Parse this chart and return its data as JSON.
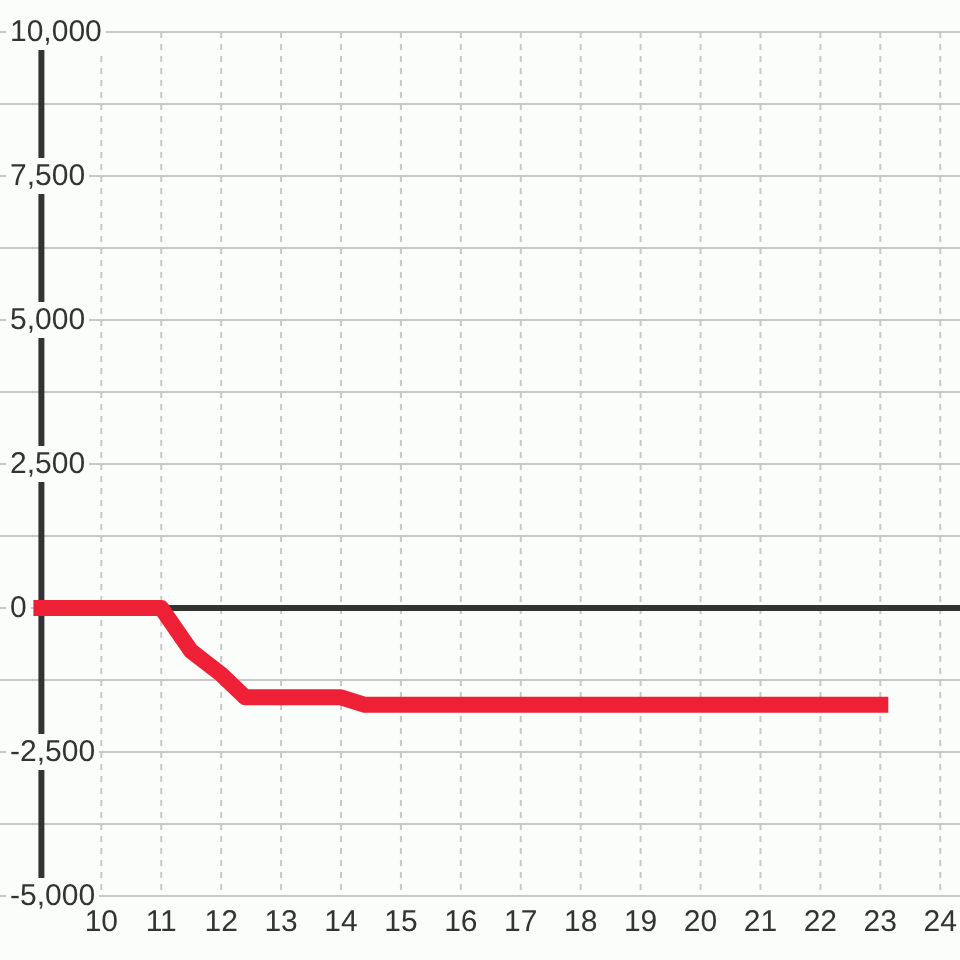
{
  "chart_data": {
    "type": "line",
    "x": [
      9,
      11,
      11.5,
      12,
      12.4,
      14,
      14.4,
      23
    ],
    "series": [
      {
        "color": "#ee2036",
        "values": [
          0,
          0,
          -750,
          -1150,
          -1550,
          -1550,
          -1680,
          -1680
        ]
      }
    ],
    "xlim": [
      9,
      24.33
    ],
    "xticks": [
      10,
      11,
      12,
      13,
      14,
      15,
      16,
      17,
      18,
      19,
      20,
      21,
      22,
      23,
      24
    ],
    "ylim": [
      -5000,
      10000
    ],
    "yticks": [
      {
        "value": -5000,
        "label": "-5,000"
      },
      {
        "value": -3750,
        "label": null
      },
      {
        "value": -2500,
        "label": "-2,500"
      },
      {
        "value": -1250,
        "label": null
      },
      0,
      {
        "value": 1250,
        "label": null
      },
      {
        "value": 2500,
        "label": "2,500"
      },
      {
        "value": 3750,
        "label": null
      },
      {
        "value": 5000,
        "label": "5,000"
      },
      {
        "value": 6250,
        "label": null
      },
      {
        "value": 7500,
        "label": "7,500"
      },
      {
        "value": 8750,
        "label": null
      },
      {
        "value": 10000,
        "label": "10,000"
      }
    ],
    "grid": true,
    "ref_lines": [
      {
        "axis": "y",
        "value": 0,
        "color": "#333333"
      }
    ]
  }
}
